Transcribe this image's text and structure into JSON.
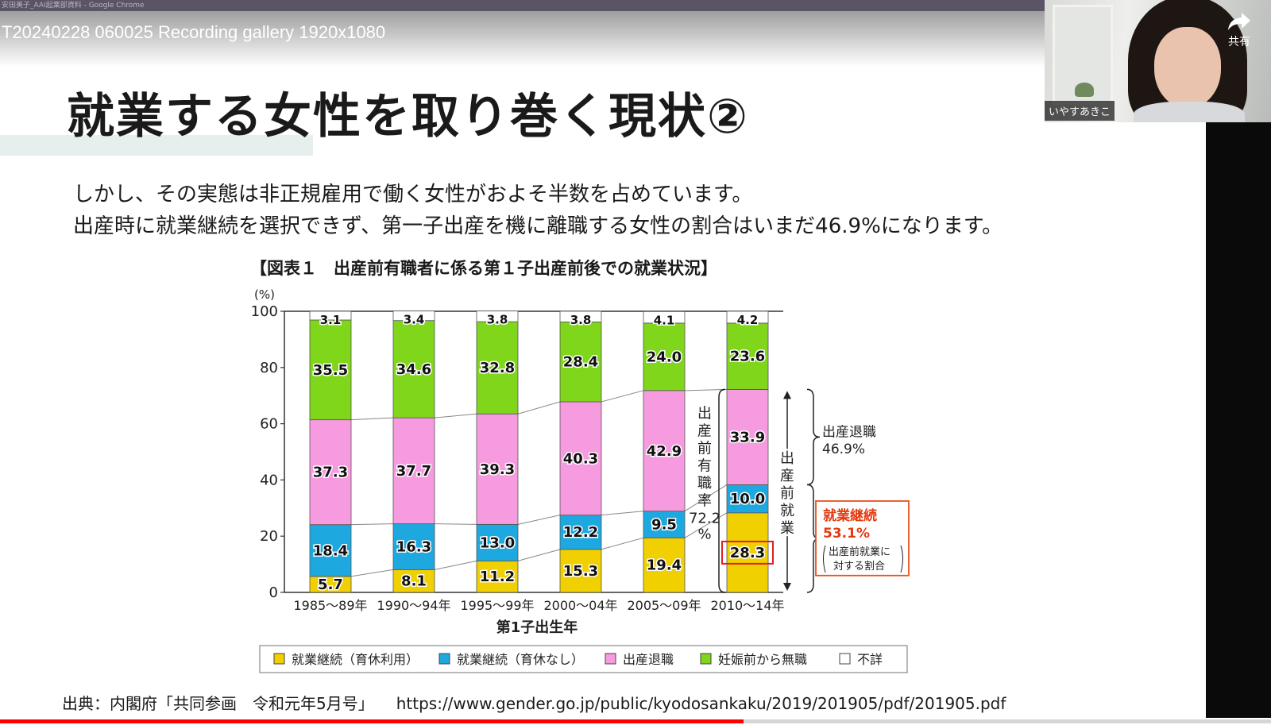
{
  "browser": {
    "window_title": "安田美子_AAI起業部資料 - Google Chrome"
  },
  "video": {
    "title": "T20240228 060025 Recording gallery 1920x1080",
    "share_label": "共有",
    "progress": 0.585
  },
  "webcam": {
    "participant_name": "いやすあきこ"
  },
  "slide": {
    "title": "就業する女性を取り巻く現状②",
    "body_line_1": "しかし、その実態は非正規雇用で働く女性がおよそ半数を占めています。",
    "body_line_2": "出産時に就業継続を選択できず、第一子出産を機に離職する女性の割合はいまだ46.9%になります。",
    "source_label": "出典：内閣府「共同参画　令和元年5月号」",
    "source_url": "https://www.gender.go.jp/public/kyodosankaku/2019/201905/pdf/201905.pdf"
  },
  "chart_data": {
    "type": "bar",
    "stacked": true,
    "title": "【図表１　出産前有職者に係る第１子出産前後での就業状況】",
    "ylabel": "(%)",
    "xlabel": "第1子出生年",
    "ylim": [
      0,
      100
    ],
    "yticks": [
      0,
      20,
      40,
      60,
      80,
      100
    ],
    "categories": [
      "1985～89年",
      "1990～94年",
      "1995～99年",
      "2000～04年",
      "2005～09年",
      "2010～14年"
    ],
    "series": [
      {
        "name": "就業継続（育休利用）",
        "color": "#f0d000",
        "values": [
          5.7,
          8.1,
          11.2,
          15.3,
          19.4,
          28.3
        ]
      },
      {
        "name": "就業継続（育休なし）",
        "color": "#1ea8e0",
        "values": [
          18.4,
          16.3,
          13.0,
          12.2,
          9.5,
          10.0
        ]
      },
      {
        "name": "出産退職",
        "color": "#f79be0",
        "values": [
          37.3,
          37.7,
          39.3,
          40.3,
          42.9,
          33.9
        ]
      },
      {
        "name": "妊娠前から無職",
        "color": "#7fd61a",
        "values": [
          35.5,
          34.6,
          32.8,
          28.4,
          24.0,
          23.6
        ]
      },
      {
        "name": "不詳",
        "color": "#ffffff",
        "values": [
          3.1,
          3.4,
          3.8,
          3.8,
          4.1,
          4.2
        ]
      }
    ],
    "annotations": {
      "employment_rate_label": "出産前有職率",
      "employment_rate_value": "72.2",
      "employment_rate_unit": "%",
      "pre_birth_employment": "出産前就業",
      "quit_label": "出産退職",
      "quit_value": "46.9%",
      "continue_label": "就業継続",
      "continue_value": "53.1%",
      "continue_note_1": "出産前就業に",
      "continue_note_2": "対する割合"
    },
    "legend_position": "bottom",
    "grid": false
  }
}
